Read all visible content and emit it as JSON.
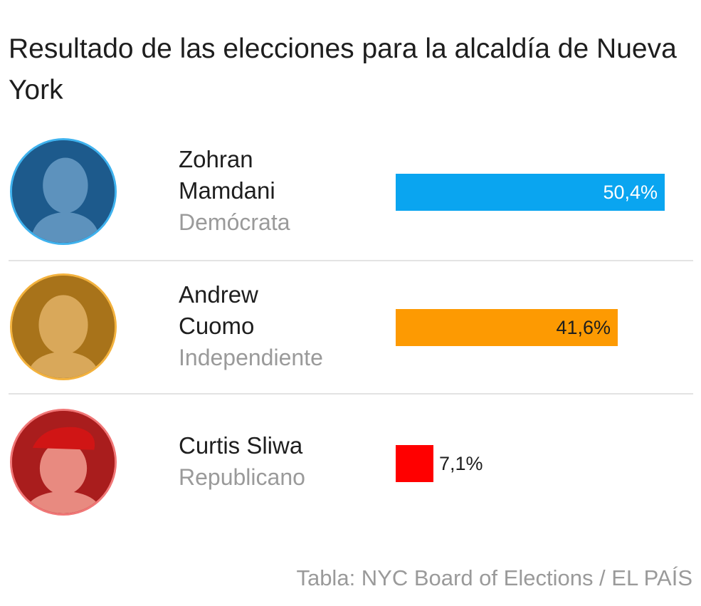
{
  "title": "Resultado de las elecciones para la alcaldía de Nueva York",
  "source": "Tabla: NYC Board of Elections / EL PAÍS",
  "colors": {
    "separator": "#e3e3e3",
    "name_text": "#1e1e1e",
    "party_text": "#9a9a9a"
  },
  "chart_data": {
    "type": "bar",
    "orientation": "horizontal",
    "title": "Resultado de las elecciones para la alcaldía de Nueva York",
    "unit": "%",
    "xlim": [
      0,
      50.4
    ],
    "categories": [
      "Zohran Mamdani",
      "Andrew Cuomo",
      "Curtis Sliwa"
    ],
    "values": [
      50.4,
      41.6,
      7.1
    ],
    "rows": [
      {
        "name_line1": "Zohran",
        "name_line2": "Mamdani",
        "party": "Demócrata",
        "value": 50.4,
        "label": "50,4%",
        "color": "#0aa5f0",
        "label_color": "#ffffff",
        "label_inside": true,
        "avatar_bg": "#1d5a8c",
        "avatar_face": "#5d92bd",
        "avatar_ring": "#3fb2ee"
      },
      {
        "name_line1": "Andrew",
        "name_line2": "Cuomo",
        "party": "Independiente",
        "value": 41.6,
        "label": "41,6%",
        "color": "#fd9a02",
        "label_color": "#1e1e1e",
        "label_inside": true,
        "avatar_bg": "#a8731a",
        "avatar_face": "#d9a85a",
        "avatar_ring": "#f3b23e"
      },
      {
        "name_line1": "Curtis Sliwa",
        "name_line2": "",
        "party": "Republicano",
        "value": 7.1,
        "label": "7,1%",
        "color": "#ff0000",
        "label_color": "#1e1e1e",
        "label_inside": false,
        "avatar_bg": "#a91d1d",
        "avatar_face": "#e88a80",
        "avatar_ring": "#f07777"
      }
    ]
  }
}
